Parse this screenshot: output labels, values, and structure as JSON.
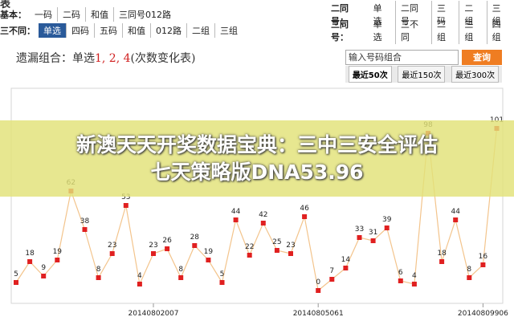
{
  "header": {
    "title_fragment": "表"
  },
  "filters_left": [
    {
      "label": "基本：",
      "options": [
        "一码",
        "二码",
        "和值",
        "三同号012路"
      ]
    },
    {
      "label": "三不同：",
      "options": [
        "单选",
        "四码",
        "五码",
        "和值",
        "012路",
        "二组",
        "三组"
      ]
    }
  ],
  "filters_right": [
    {
      "label": "二同号：",
      "options": [
        "单选",
        "二同号",
        "三码",
        "二组",
        "三组"
      ]
    },
    {
      "label": "三同号：",
      "options": [
        "单选",
        "三不同",
        "二组",
        "三组",
        "四组"
      ]
    }
  ],
  "section": {
    "title_prefix": "遗漏组合：单选",
    "title_numbers": "1, 2, 4",
    "title_suffix": "(次数变化表)"
  },
  "search": {
    "placeholder": "输入号码组合",
    "button": "查询",
    "tabs": [
      "最近50次",
      "最近150次",
      "最近300次"
    ]
  },
  "banner": {
    "line1": "新澳天天开奖数据宝典：三中三安全评估",
    "line2": "七天策略版DNA53.96"
  },
  "chart_data": {
    "type": "line",
    "categories": [
      null,
      null,
      null,
      null,
      null,
      null,
      null,
      null,
      null,
      null,
      "20140802007",
      null,
      null,
      null,
      null,
      null,
      null,
      null,
      null,
      null,
      null,
      null,
      "20140805061",
      null,
      null,
      null,
      null,
      null,
      null,
      null,
      null,
      null,
      null,
      null,
      "20140809906",
      null
    ],
    "values": [
      5,
      18,
      9,
      19,
      62,
      38,
      8,
      23,
      53,
      4,
      23,
      26,
      8,
      28,
      19,
      5,
      44,
      22,
      42,
      25,
      23,
      46,
      0,
      7,
      14,
      33,
      31,
      39,
      6,
      4,
      98,
      18,
      44,
      8,
      16,
      101
    ],
    "color": "#f3c48c",
    "marker_color": "#e02020"
  }
}
